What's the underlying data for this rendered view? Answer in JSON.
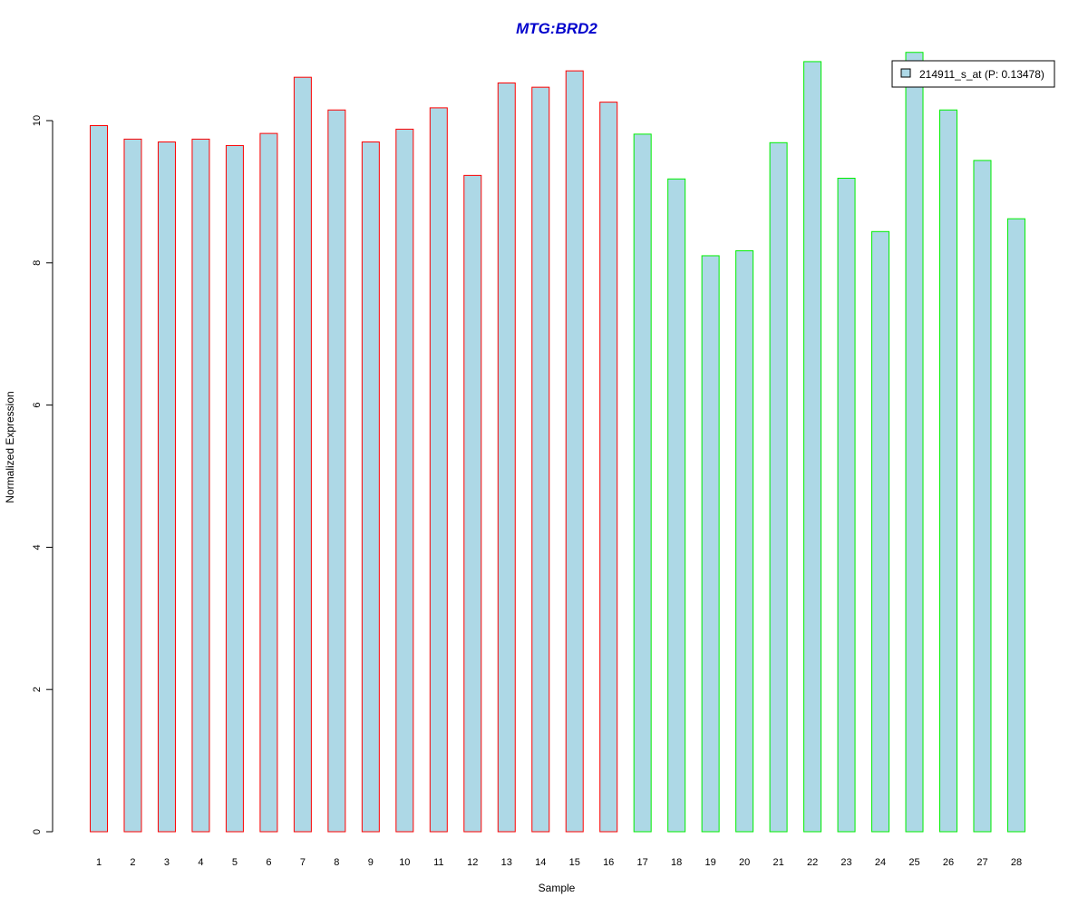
{
  "chart_data": {
    "type": "bar",
    "title": "MTG:BRD2",
    "xlabel": "Sample",
    "ylabel": "Normalized Expression",
    "ylim": [
      0,
      11
    ],
    "yticks": [
      0,
      2,
      4,
      6,
      8,
      10
    ],
    "grid": false,
    "legend_position": "top-right",
    "colors": {
      "title": "#0000cc",
      "bar_fill": "#add8e6",
      "group1_border": "#ff0000",
      "group2_border": "#00ee00"
    },
    "categories": [
      "1",
      "2",
      "3",
      "4",
      "5",
      "6",
      "7",
      "8",
      "9",
      "10",
      "11",
      "12",
      "13",
      "14",
      "15",
      "16",
      "17",
      "18",
      "19",
      "20",
      "21",
      "22",
      "23",
      "24",
      "25",
      "26",
      "27",
      "28"
    ],
    "series": [
      {
        "name": "214911_s_at (P: 0.13478)",
        "values": [
          9.93,
          9.74,
          9.7,
          9.74,
          9.65,
          9.82,
          10.61,
          10.15,
          9.7,
          9.88,
          10.18,
          9.23,
          10.53,
          10.47,
          10.7,
          10.26,
          9.81,
          9.18,
          8.1,
          8.17,
          9.69,
          10.83,
          9.19,
          8.44,
          10.96,
          10.15,
          9.44,
          8.62
        ],
        "groups": [
          1,
          1,
          1,
          1,
          1,
          1,
          1,
          1,
          1,
          1,
          1,
          1,
          1,
          1,
          1,
          1,
          2,
          2,
          2,
          2,
          2,
          2,
          2,
          2,
          2,
          2,
          2,
          2
        ]
      }
    ]
  }
}
